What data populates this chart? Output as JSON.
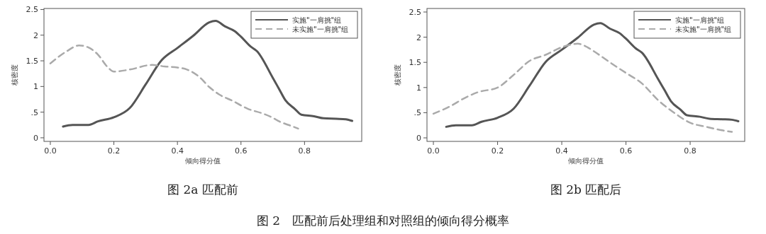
{
  "chart_data": [
    {
      "type": "line",
      "title": "图 2a 匹配前",
      "xlabel": "倾向得分值",
      "ylabel": "核密度",
      "xlim": [
        -0.02,
        0.98
      ],
      "ylim": [
        -0.07,
        2.52
      ],
      "xticks": [
        {
          "value": 0,
          "label": "0.0"
        },
        0.2,
        0.4,
        0.6,
        0.8
      ],
      "yticks": [
        0,
        {
          "value": 0.5,
          "label": ".5"
        },
        1,
        1.5,
        2,
        2.5
      ],
      "grid": false,
      "legend": "top right",
      "annotations": [
        "图 2　匹配前后处理组和对照组的倾向得分概率"
      ],
      "series": [
        {
          "name": "实施\"一肩挑\"组",
          "color": "#555555",
          "line_style": "solid",
          "x": [
            0.04,
            0.07,
            0.1,
            0.12,
            0.15,
            0.2,
            0.25,
            0.3,
            0.35,
            0.4,
            0.45,
            0.5,
            0.52,
            0.55,
            0.58,
            0.6,
            0.63,
            0.65,
            0.7,
            0.72,
            0.74,
            0.77,
            0.79,
            0.83,
            0.86,
            0.9,
            0.93,
            0.95
          ],
          "values": [
            0.22,
            0.25,
            0.25,
            0.25,
            0.32,
            0.4,
            0.58,
            1.04,
            1.51,
            1.75,
            1.99,
            2.25,
            2.28,
            2.17,
            2.08,
            1.97,
            1.78,
            1.69,
            1.17,
            0.95,
            0.73,
            0.56,
            0.45,
            0.42,
            0.38,
            0.37,
            0.36,
            0.33
          ]
        },
        {
          "name": "未实施\"一肩挑\"组",
          "color": "#aaaaaa",
          "line_style": "dashed",
          "x": [
            0,
            0.05,
            0.09,
            0.12,
            0.15,
            0.18,
            0.2,
            0.25,
            0.32,
            0.36,
            0.4,
            0.43,
            0.47,
            0.5,
            0.53,
            0.58,
            0.6,
            0.62,
            0.67,
            0.7,
            0.72,
            0.75,
            0.78
          ],
          "values": [
            1.45,
            1.68,
            1.8,
            1.76,
            1.62,
            1.38,
            1.29,
            1.33,
            1.42,
            1.39,
            1.37,
            1.33,
            1.18,
            0.99,
            0.85,
            0.7,
            0.63,
            0.57,
            0.47,
            0.39,
            0.32,
            0.25,
            0.18
          ]
        }
      ]
    },
    {
      "type": "line",
      "title": "图 2b 匹配后",
      "xlabel": "倾向得分值",
      "ylabel": "核密度",
      "xlim": [
        -0.02,
        0.97
      ],
      "ylim": [
        -0.07,
        2.57
      ],
      "xticks": [
        {
          "value": 0,
          "label": "0.0"
        },
        0.2,
        0.4,
        0.6,
        0.8
      ],
      "yticks": [
        0,
        {
          "value": 0.5,
          "label": ".5"
        },
        1,
        1.5,
        2,
        2.5
      ],
      "grid": false,
      "legend": "top right",
      "series": [
        {
          "name": "实施\"一肩挑\"组",
          "color": "#555555",
          "line_style": "solid",
          "x": [
            0.04,
            0.07,
            0.1,
            0.12,
            0.15,
            0.2,
            0.25,
            0.3,
            0.35,
            0.4,
            0.45,
            0.5,
            0.52,
            0.55,
            0.58,
            0.6,
            0.63,
            0.65,
            0.7,
            0.72,
            0.74,
            0.77,
            0.79,
            0.83,
            0.86,
            0.9,
            0.93,
            0.95
          ],
          "values": [
            0.22,
            0.25,
            0.25,
            0.25,
            0.32,
            0.4,
            0.58,
            1.04,
            1.51,
            1.75,
            1.99,
            2.25,
            2.28,
            2.17,
            2.08,
            1.97,
            1.78,
            1.69,
            1.17,
            0.95,
            0.73,
            0.56,
            0.45,
            0.42,
            0.38,
            0.37,
            0.36,
            0.33
          ]
        },
        {
          "name": "未实施\"一肩挑\"组",
          "color": "#aaaaaa",
          "line_style": "dashed",
          "x": [
            0,
            0.05,
            0.1,
            0.14,
            0.2,
            0.25,
            0.3,
            0.35,
            0.4,
            0.45,
            0.48,
            0.5,
            0.55,
            0.6,
            0.65,
            0.7,
            0.75,
            0.8,
            0.85,
            0.9,
            0.93
          ],
          "values": [
            0.48,
            0.62,
            0.8,
            0.91,
            1.0,
            1.25,
            1.53,
            1.65,
            1.8,
            1.87,
            1.8,
            1.72,
            1.5,
            1.29,
            1.08,
            0.75,
            0.5,
            0.3,
            0.22,
            0.15,
            0.12
          ]
        }
      ]
    }
  ]
}
